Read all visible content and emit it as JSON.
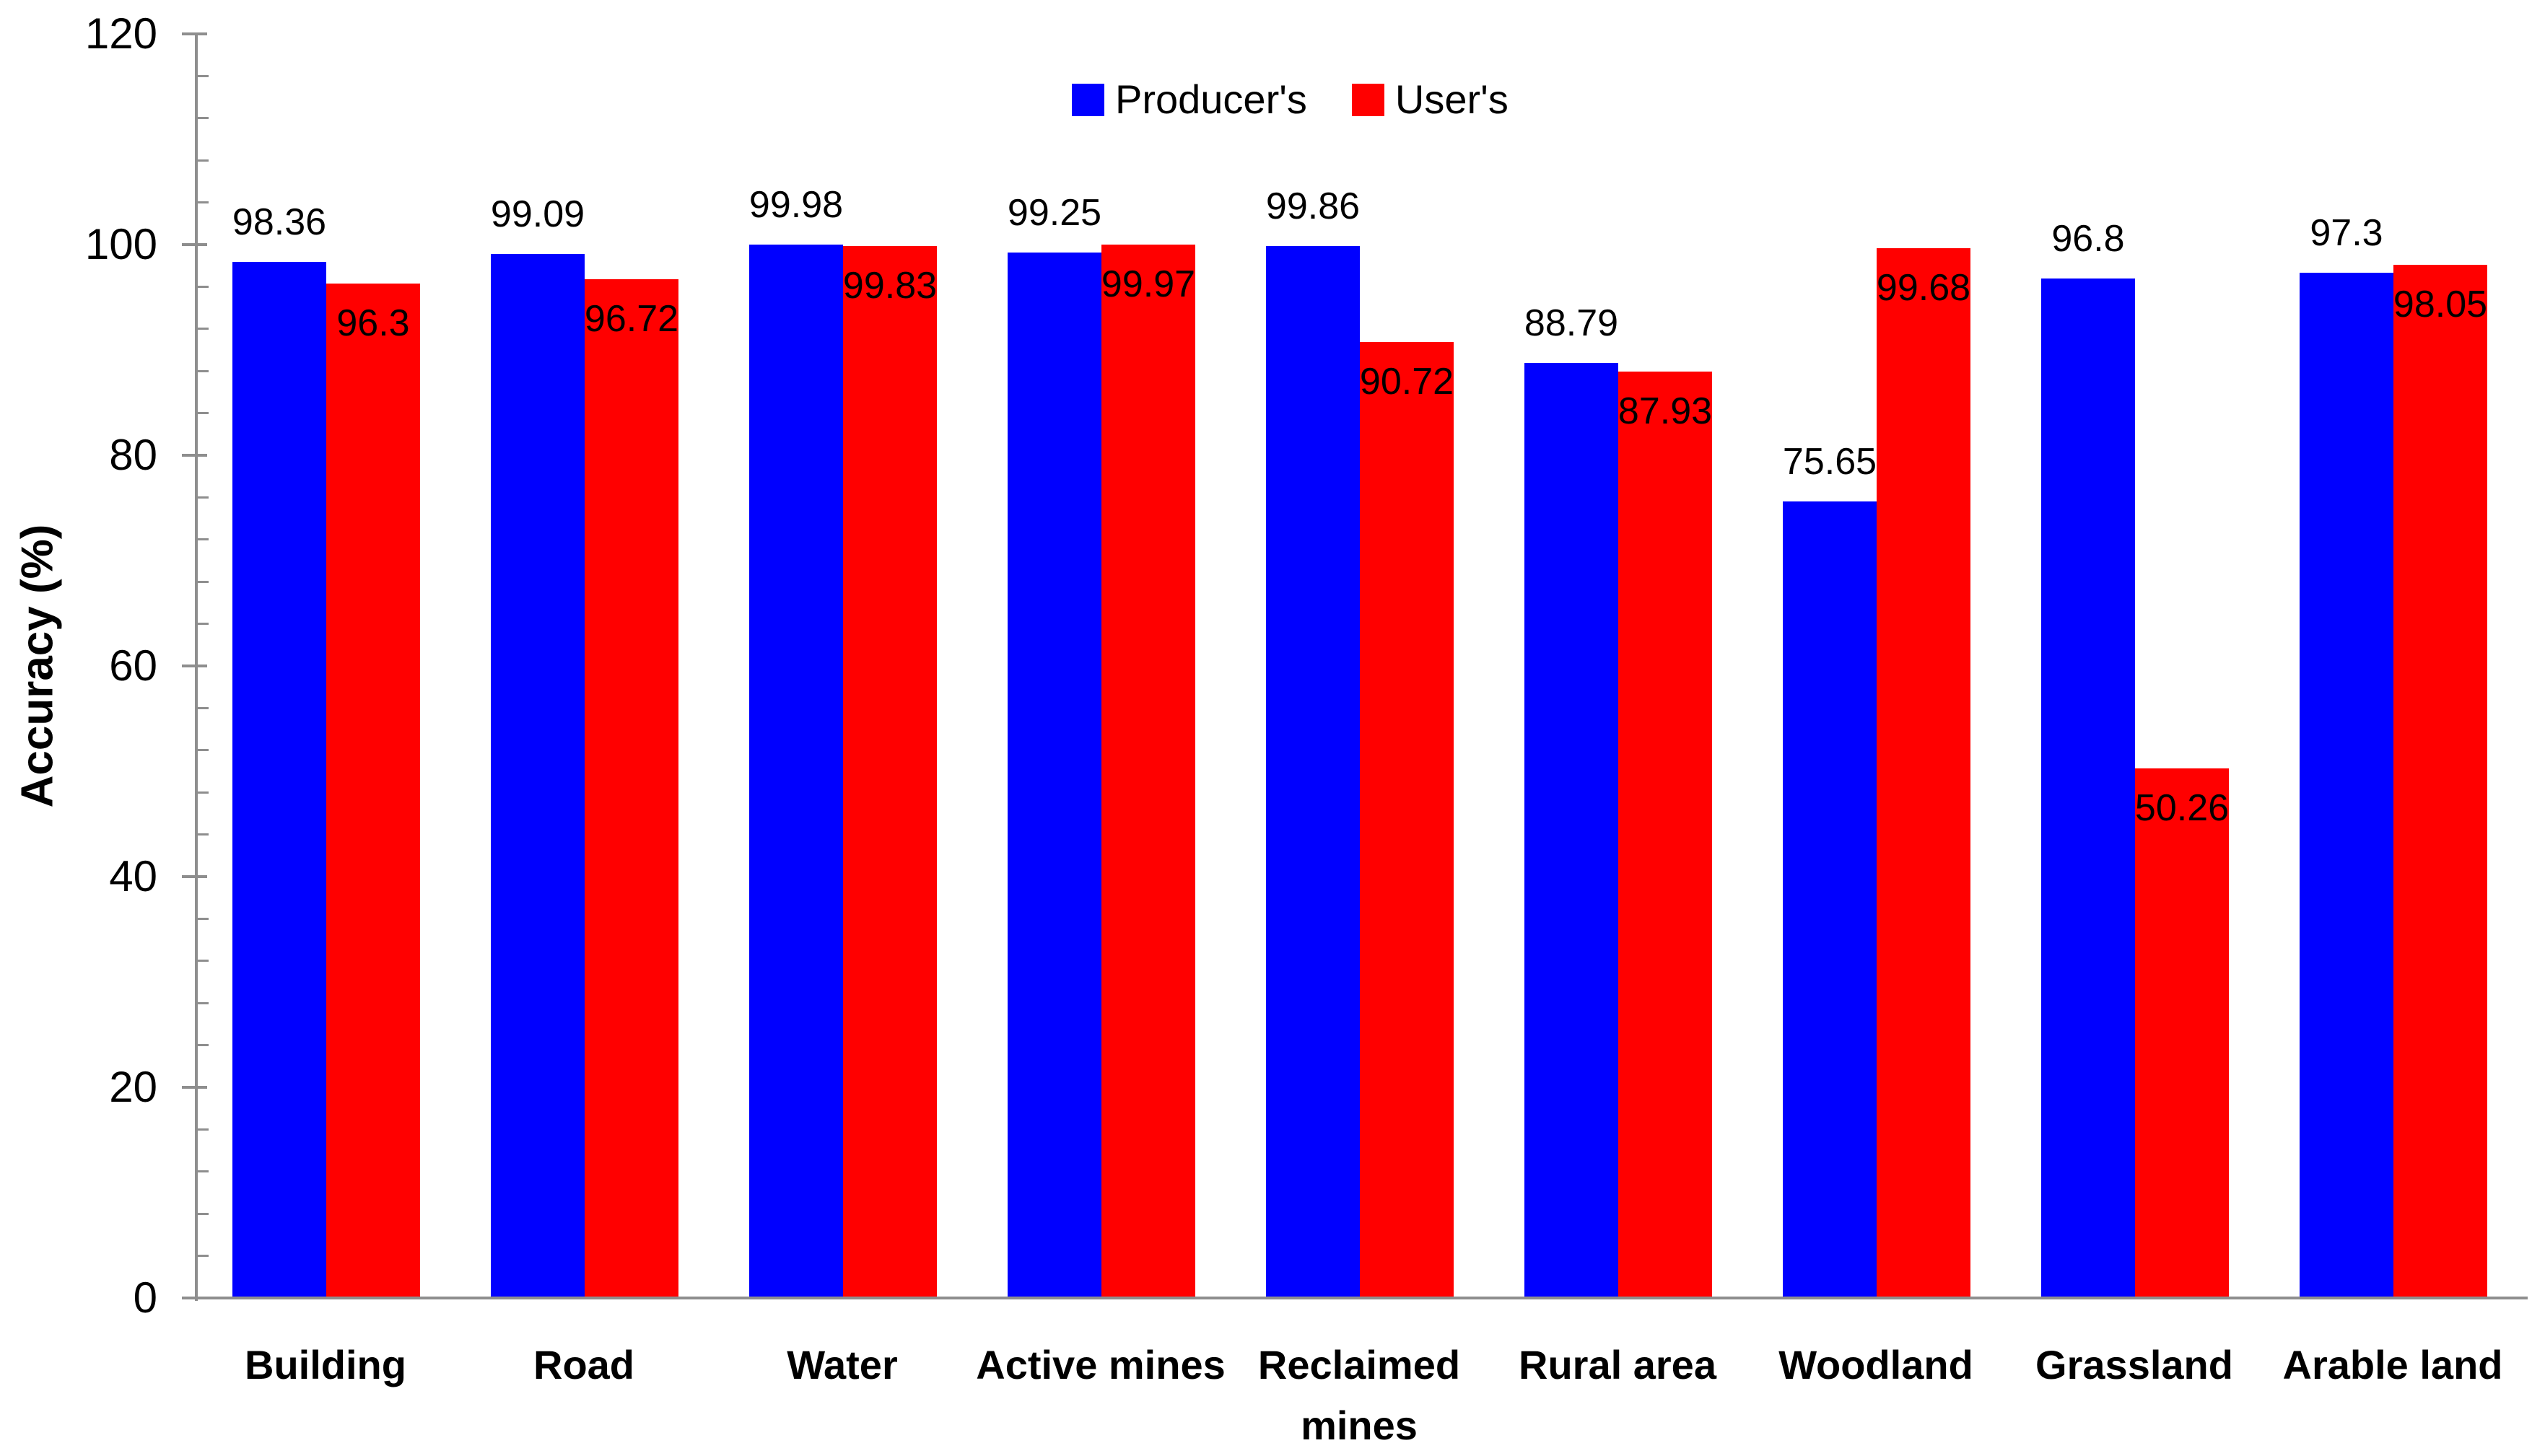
{
  "chart_data": {
    "type": "bar",
    "title": "",
    "ylabel": "Accuracy (%)",
    "xlabel": "",
    "ylim": [
      0,
      120
    ],
    "y_major_ticks": [
      0,
      20,
      40,
      60,
      80,
      100,
      120
    ],
    "y_minor_step": 4,
    "grid": "off",
    "legend_position": "top-center",
    "categories": [
      "Building",
      "Road",
      "Water",
      "Active mines",
      "Reclaimed\nmines",
      "Rural area",
      "Woodland",
      "Grassland",
      "Arable land"
    ],
    "series": [
      {
        "name": "Producer's",
        "color": "#0000ff",
        "label_position": "outside-end",
        "values": [
          98.36,
          99.09,
          99.98,
          99.25,
          99.86,
          88.79,
          75.65,
          96.8,
          97.3
        ]
      },
      {
        "name": "User's",
        "color": "#ff0000",
        "label_position": "inside-end",
        "values": [
          96.3,
          96.72,
          99.83,
          99.97,
          90.72,
          87.93,
          99.68,
          50.26,
          98.05
        ]
      }
    ]
  },
  "colors": {
    "axis": "#8e8e8e",
    "text": "#000000",
    "producer_blue": "#0000ff",
    "user_red": "#ff0000",
    "background": "#ffffff"
  }
}
